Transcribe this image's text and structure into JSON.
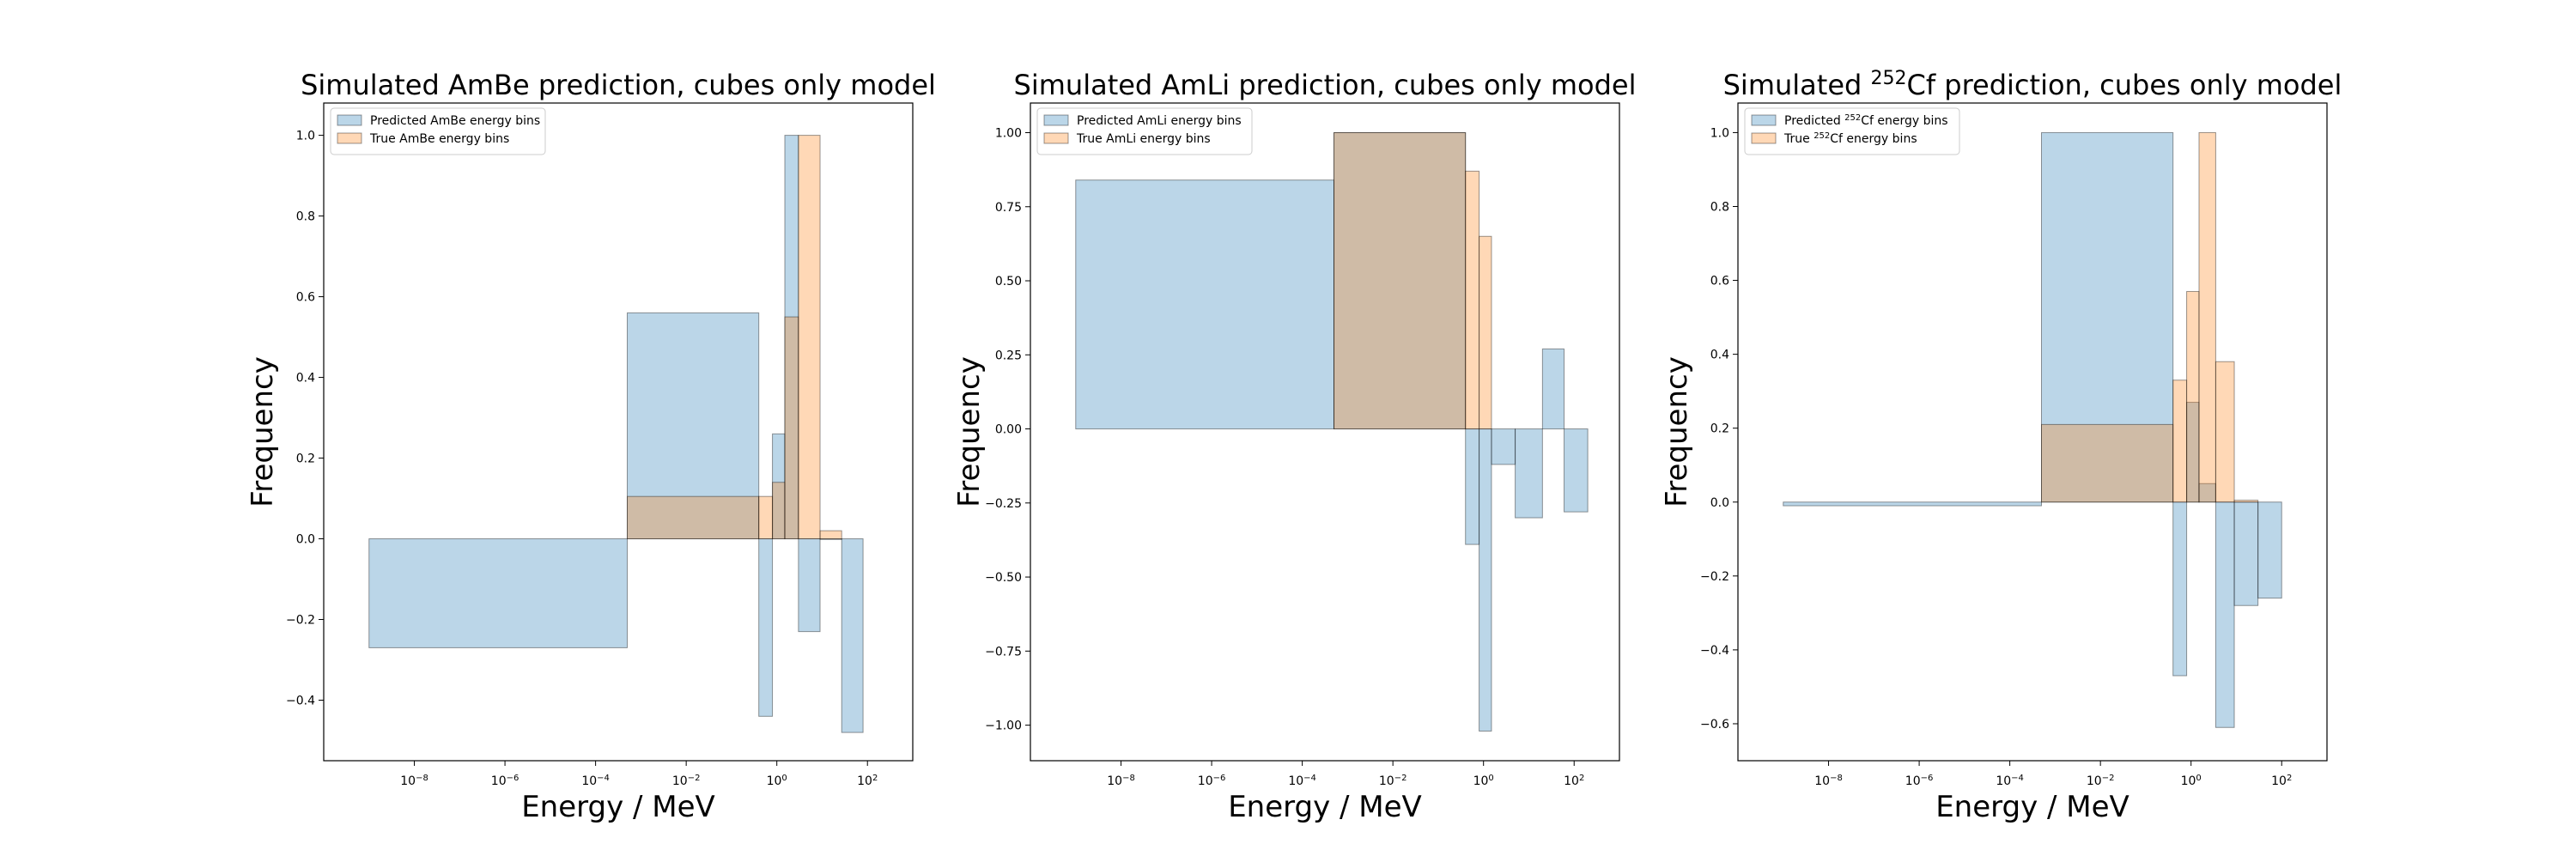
{
  "figure": {
    "xlabel": "Energy / MeV",
    "ylabel": "Frequency",
    "predicted_color": "#1f77b4",
    "true_color": "#ff7f0e"
  },
  "chart_data": [
    {
      "type": "bar",
      "title": "Simulated AmBe prediction, cubes only model",
      "title_parts": [
        {
          "text": "Simulated AmBe prediction, cubes only model",
          "sup": false
        }
      ],
      "xlabel": "Energy / MeV",
      "ylabel": "Frequency",
      "xscale": "log",
      "xlim": [
        1e-10,
        1000.0
      ],
      "ylim": [
        -0.55,
        1.08
      ],
      "xticks": [
        {
          "value": 1e-08,
          "base": "10",
          "exp": "−8"
        },
        {
          "value": 1e-06,
          "base": "10",
          "exp": "−6"
        },
        {
          "value": 0.0001,
          "base": "10",
          "exp": "−4"
        },
        {
          "value": 0.01,
          "base": "10",
          "exp": "−2"
        },
        {
          "value": 1,
          "base": "10",
          "exp": "0"
        },
        {
          "value": 100,
          "base": "10",
          "exp": "2"
        }
      ],
      "yticks": [
        {
          "value": -0.4,
          "label": "−0.4"
        },
        {
          "value": -0.2,
          "label": "−0.2"
        },
        {
          "value": 0.0,
          "label": "0.0"
        },
        {
          "value": 0.2,
          "label": "0.2"
        },
        {
          "value": 0.4,
          "label": "0.4"
        },
        {
          "value": 0.6,
          "label": "0.6"
        },
        {
          "value": 0.8,
          "label": "0.8"
        },
        {
          "value": 1.0,
          "label": "1.0"
        }
      ],
      "legend_position": "upper-left",
      "series": [
        {
          "name": "Predicted AmBe energy bins",
          "name_parts": [
            {
              "text": "Predicted AmBe energy bins",
              "sup": false
            }
          ],
          "color": "#1f77b4",
          "bins": [
            {
              "x0": 1e-09,
              "x1": 0.0005,
              "value": -0.27
            },
            {
              "x0": 0.0005,
              "x1": 0.4,
              "value": 0.56
            },
            {
              "x0": 0.4,
              "x1": 0.8,
              "value": -0.44
            },
            {
              "x0": 0.8,
              "x1": 1.5,
              "value": 0.26
            },
            {
              "x0": 1.5,
              "x1": 3,
              "value": 1.0
            },
            {
              "x0": 3,
              "x1": 9,
              "value": -0.23
            },
            {
              "x0": 9,
              "x1": 27,
              "value": 0.0
            },
            {
              "x0": 27,
              "x1": 80,
              "value": -0.48
            }
          ]
        },
        {
          "name": "True AmBe energy bins",
          "name_parts": [
            {
              "text": "True AmBe energy bins",
              "sup": false
            }
          ],
          "color": "#ff7f0e",
          "bins": [
            {
              "x0": 0.0005,
              "x1": 0.4,
              "value": 0.105
            },
            {
              "x0": 0.4,
              "x1": 0.8,
              "value": 0.105
            },
            {
              "x0": 0.8,
              "x1": 1.5,
              "value": 0.14
            },
            {
              "x0": 1.5,
              "x1": 3,
              "value": 0.55
            },
            {
              "x0": 3,
              "x1": 9,
              "value": 1.0
            },
            {
              "x0": 9,
              "x1": 27,
              "value": 0.02
            }
          ]
        }
      ]
    },
    {
      "type": "bar",
      "title": "Simulated AmLi prediction, cubes only model",
      "title_parts": [
        {
          "text": "Simulated AmLi prediction, cubes only model",
          "sup": false
        }
      ],
      "xlabel": "Energy / MeV",
      "ylabel": "Frequency",
      "xscale": "log",
      "xlim": [
        1e-10,
        1000.0
      ],
      "ylim": [
        -1.12,
        1.1
      ],
      "xticks": [
        {
          "value": 1e-08,
          "base": "10",
          "exp": "−8"
        },
        {
          "value": 1e-06,
          "base": "10",
          "exp": "−6"
        },
        {
          "value": 0.0001,
          "base": "10",
          "exp": "−4"
        },
        {
          "value": 0.01,
          "base": "10",
          "exp": "−2"
        },
        {
          "value": 1,
          "base": "10",
          "exp": "0"
        },
        {
          "value": 100,
          "base": "10",
          "exp": "2"
        }
      ],
      "yticks": [
        {
          "value": -1.0,
          "label": "−1.00"
        },
        {
          "value": -0.75,
          "label": "−0.75"
        },
        {
          "value": -0.5,
          "label": "−0.50"
        },
        {
          "value": -0.25,
          "label": "−0.25"
        },
        {
          "value": 0.0,
          "label": "0.00"
        },
        {
          "value": 0.25,
          "label": "0.25"
        },
        {
          "value": 0.5,
          "label": "0.50"
        },
        {
          "value": 0.75,
          "label": "0.75"
        },
        {
          "value": 1.0,
          "label": "1.00"
        }
      ],
      "legend_position": "upper-left",
      "series": [
        {
          "name": "Predicted AmLi energy bins",
          "name_parts": [
            {
              "text": "Predicted AmLi energy bins",
              "sup": false
            }
          ],
          "color": "#1f77b4",
          "bins": [
            {
              "x0": 1e-09,
              "x1": 0.0005,
              "value": 0.84
            },
            {
              "x0": 0.0005,
              "x1": 0.4,
              "value": 1.0
            },
            {
              "x0": 0.4,
              "x1": 0.8,
              "value": -0.39
            },
            {
              "x0": 0.8,
              "x1": 1.5,
              "value": -1.02
            },
            {
              "x0": 1.5,
              "x1": 5,
              "value": -0.12
            },
            {
              "x0": 5,
              "x1": 20,
              "value": -0.3
            },
            {
              "x0": 20,
              "x1": 60,
              "value": 0.27
            },
            {
              "x0": 60,
              "x1": 200,
              "value": -0.28
            }
          ]
        },
        {
          "name": "True AmLi energy bins",
          "name_parts": [
            {
              "text": "True AmLi energy bins",
              "sup": false
            }
          ],
          "color": "#ff7f0e",
          "bins": [
            {
              "x0": 0.0005,
              "x1": 0.4,
              "value": 1.0
            },
            {
              "x0": 0.4,
              "x1": 0.8,
              "value": 0.87
            },
            {
              "x0": 0.8,
              "x1": 1.5,
              "value": 0.65
            }
          ]
        }
      ]
    },
    {
      "type": "bar",
      "title": "Simulated 252Cf prediction, cubes only model",
      "title_parts": [
        {
          "text": "Simulated ",
          "sup": false
        },
        {
          "text": "252",
          "sup": true
        },
        {
          "text": "Cf prediction, cubes only model",
          "sup": false
        }
      ],
      "xlabel": "Energy / MeV",
      "ylabel": "Frequency",
      "xscale": "log",
      "xlim": [
        1e-10,
        1000.0
      ],
      "ylim": [
        -0.7,
        1.08
      ],
      "xticks": [
        {
          "value": 1e-08,
          "base": "10",
          "exp": "−8"
        },
        {
          "value": 1e-06,
          "base": "10",
          "exp": "−6"
        },
        {
          "value": 0.0001,
          "base": "10",
          "exp": "−4"
        },
        {
          "value": 0.01,
          "base": "10",
          "exp": "−2"
        },
        {
          "value": 1,
          "base": "10",
          "exp": "0"
        },
        {
          "value": 100,
          "base": "10",
          "exp": "2"
        }
      ],
      "yticks": [
        {
          "value": -0.6,
          "label": "−0.6"
        },
        {
          "value": -0.4,
          "label": "−0.4"
        },
        {
          "value": -0.2,
          "label": "−0.2"
        },
        {
          "value": 0.0,
          "label": "0.0"
        },
        {
          "value": 0.2,
          "label": "0.2"
        },
        {
          "value": 0.4,
          "label": "0.4"
        },
        {
          "value": 0.6,
          "label": "0.6"
        },
        {
          "value": 0.8,
          "label": "0.8"
        },
        {
          "value": 1.0,
          "label": "1.0"
        }
      ],
      "legend_position": "upper-left",
      "series": [
        {
          "name": "Predicted 252Cf energy bins",
          "name_parts": [
            {
              "text": "Predicted ",
              "sup": false
            },
            {
              "text": "252",
              "sup": true
            },
            {
              "text": "Cf energy bins",
              "sup": false
            }
          ],
          "color": "#1f77b4",
          "bins": [
            {
              "x0": 1e-09,
              "x1": 0.0005,
              "value": -0.01
            },
            {
              "x0": 0.0005,
              "x1": 0.4,
              "value": 1.0
            },
            {
              "x0": 0.4,
              "x1": 0.8,
              "value": -0.47
            },
            {
              "x0": 0.8,
              "x1": 1.5,
              "value": 0.27
            },
            {
              "x0": 1.5,
              "x1": 3.5,
              "value": 0.05
            },
            {
              "x0": 3.5,
              "x1": 9,
              "value": -0.61
            },
            {
              "x0": 9,
              "x1": 30,
              "value": -0.28
            },
            {
              "x0": 30,
              "x1": 100,
              "value": -0.26
            }
          ]
        },
        {
          "name": "True 252Cf energy bins",
          "name_parts": [
            {
              "text": "True ",
              "sup": false
            },
            {
              "text": "252",
              "sup": true
            },
            {
              "text": "Cf energy bins",
              "sup": false
            }
          ],
          "color": "#ff7f0e",
          "bins": [
            {
              "x0": 0.0005,
              "x1": 0.4,
              "value": 0.21
            },
            {
              "x0": 0.4,
              "x1": 0.8,
              "value": 0.33
            },
            {
              "x0": 0.8,
              "x1": 1.5,
              "value": 0.57
            },
            {
              "x0": 1.5,
              "x1": 3.5,
              "value": 1.0
            },
            {
              "x0": 3.5,
              "x1": 9,
              "value": 0.38
            },
            {
              "x0": 9,
              "x1": 30,
              "value": 0.005
            }
          ]
        }
      ]
    }
  ]
}
